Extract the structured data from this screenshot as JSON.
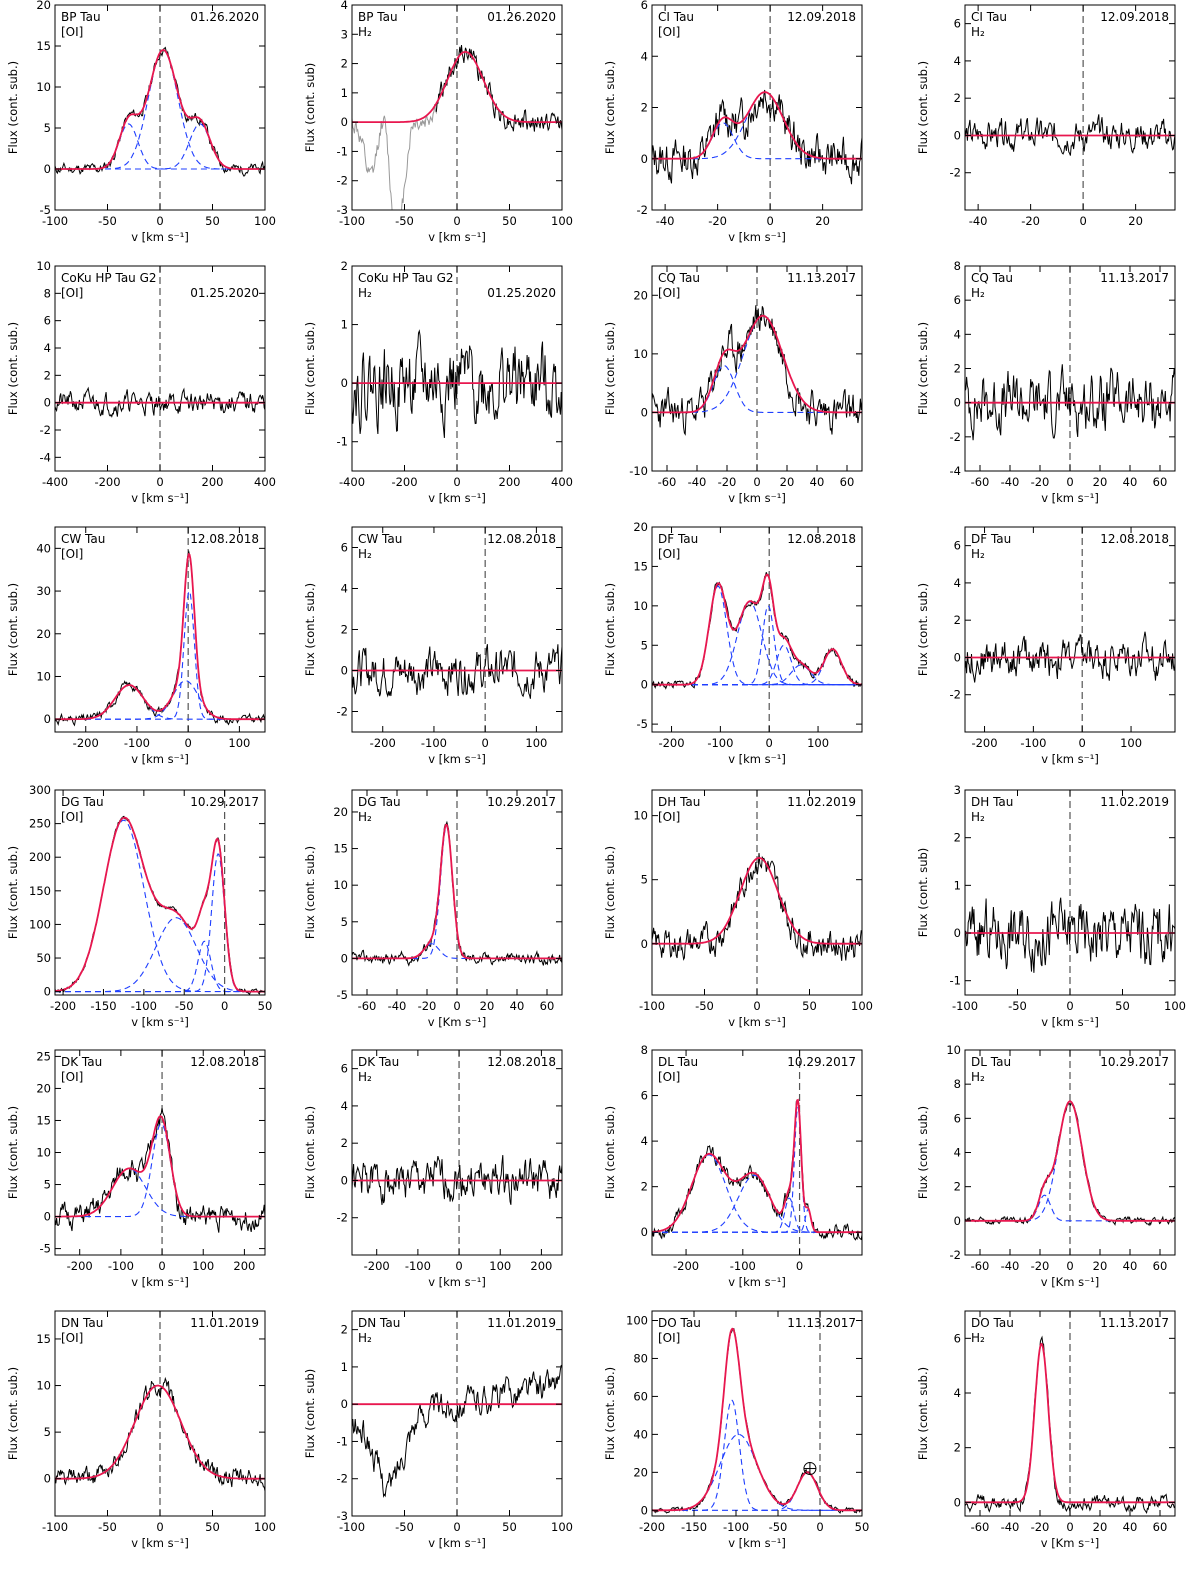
{
  "chart_data": [
    {
      "id": "bp-oi",
      "type": "line",
      "title": "BP Tau",
      "line_label": "[OI]",
      "date": "01.26.2020",
      "xlabel": "v [km s⁻¹]",
      "ylabel": "Flux (cont. sub.)",
      "xlim": [
        -100,
        100
      ],
      "ylim": [
        -5,
        20
      ],
      "xticks": [
        "-100",
        "-50",
        "0",
        "50",
        "100"
      ],
      "yticks": [
        "-5",
        "0",
        "5",
        "10",
        "15",
        "20"
      ],
      "components": [
        {
          "amp": 5.5,
          "center": -30,
          "sigma": 9
        },
        {
          "amp": 14.5,
          "center": 3,
          "sigma": 14
        },
        {
          "amp": 5.5,
          "center": 38,
          "sigma": 10
        }
      ],
      "noise": 0.5,
      "seed": 11,
      "zero_line_style": "gray"
    },
    {
      "id": "bp-h2",
      "type": "line",
      "title": "BP Tau",
      "line_label": "H₂",
      "date": "01.26.2020",
      "xlabel": "v [km s⁻¹]",
      "ylabel": "Flux (cont. sub)",
      "xlim": [
        -100,
        100
      ],
      "ylim": [
        -3,
        4
      ],
      "xticks": [
        "-100",
        "-50",
        "0",
        "50",
        "100"
      ],
      "yticks": [
        "-3",
        "-2",
        "-1",
        "0",
        "1",
        "2",
        "3",
        "4"
      ],
      "components": [
        {
          "amp": 2.4,
          "center": 8,
          "sigma": 17
        }
      ],
      "noise": 0.3,
      "seed": 12,
      "zero_line_style": "black",
      "show_components": false,
      "gray_absorption": true
    },
    {
      "id": "ci-oi",
      "type": "line",
      "title": "CI Tau",
      "line_label": "[OI]",
      "date": "12.09.2018",
      "xlabel": "v [km s⁻¹]",
      "ylabel": "Flux (cont. sub.)",
      "xlim": [
        -45,
        35
      ],
      "ylim": [
        -2,
        6
      ],
      "xticks": [
        "-40",
        "-20",
        "0",
        "20"
      ],
      "yticks": [
        "-2",
        "0",
        "2",
        "4",
        "6"
      ],
      "components": [
        {
          "amp": 1.4,
          "center": -18,
          "sigma": 4
        },
        {
          "amp": 2.6,
          "center": -2,
          "sigma": 7
        }
      ],
      "noise": 0.6,
      "seed": 13,
      "zero_line_style": "black"
    },
    {
      "id": "ci-h2",
      "type": "line",
      "title": "CI Tau",
      "line_label": "H₂",
      "date": "12.09.2018",
      "xlabel": "",
      "ylabel": "Flux (cont. sub.)",
      "xlim": [
        -45,
        35
      ],
      "ylim": [
        -4,
        7
      ],
      "xticks": [
        "-40",
        "-20",
        "0",
        "20"
      ],
      "yticks": [
        "-2",
        "0",
        "2",
        "4",
        "6"
      ],
      "components": [],
      "noise": 0.6,
      "seed": 14,
      "zero_line_style": "gray"
    },
    {
      "id": "coku-oi",
      "type": "line",
      "title": "CoKu HP Tau G2",
      "line_label": "[OI]",
      "date": "01.25.2020",
      "xlabel": "v [km s⁻¹]",
      "ylabel": "Flux (cont. sub.)",
      "xlim": [
        -400,
        400
      ],
      "ylim": [
        -5,
        10
      ],
      "xticks": [
        "-400",
        "-200",
        "0",
        "200",
        "400"
      ],
      "yticks": [
        "-4",
        "-2",
        "0",
        "2",
        "4",
        "6",
        "8",
        "10"
      ],
      "components": [],
      "noise": 0.6,
      "seed": 21,
      "zero_line_style": "gray"
    },
    {
      "id": "coku-h2",
      "type": "line",
      "title": "CoKu HP Tau G2",
      "line_label": "H₂",
      "date": "01.25.2020",
      "xlabel": "v [km s⁻¹]",
      "ylabel": "Flux (cont. sub.)",
      "xlim": [
        -400,
        400
      ],
      "ylim": [
        -1.5,
        2
      ],
      "xticks": [
        "-400",
        "-200",
        "0",
        "200",
        "400"
      ],
      "yticks": [
        "-1",
        "0",
        "1",
        "2"
      ],
      "components": [],
      "noise": 0.5,
      "seed": 22,
      "zero_line_style": "black"
    },
    {
      "id": "cq-oi",
      "type": "line",
      "title": "CQ Tau",
      "line_label": "[OI]",
      "date": "11.13.2017",
      "xlabel": "v [km s⁻¹]",
      "ylabel": "Flux (cont. sub.)",
      "xlim": [
        -70,
        70
      ],
      "ylim": [
        -10,
        25
      ],
      "xticks": [
        "-60",
        "-40",
        "-20",
        "0",
        "20",
        "40",
        "60"
      ],
      "yticks": [
        "-10",
        "0",
        "10",
        "20"
      ],
      "components": [
        {
          "amp": 8,
          "center": -22,
          "sigma": 7
        },
        {
          "amp": 16.5,
          "center": 4,
          "sigma": 13
        }
      ],
      "noise": 2.5,
      "seed": 23,
      "zero_line_style": "black"
    },
    {
      "id": "cq-h2",
      "type": "line",
      "title": "CQ Tau",
      "line_label": "H₂",
      "date": "11.13.2017",
      "xlabel": "v [km s⁻¹]",
      "ylabel": "Flux (cont. sub.)",
      "xlim": [
        -70,
        70
      ],
      "ylim": [
        -4,
        8
      ],
      "xticks": [
        "-60",
        "-40",
        "-20",
        "0",
        "20",
        "40",
        "60"
      ],
      "yticks": [
        "-4",
        "-2",
        "0",
        "2",
        "4",
        "6",
        "8"
      ],
      "components": [],
      "noise": 1.3,
      "seed": 24,
      "zero_line_style": "black"
    },
    {
      "id": "cw-oi",
      "type": "line",
      "title": "CW Tau",
      "line_label": "[OI]",
      "date": "12.08.2018",
      "xlabel": "v [km s⁻¹]",
      "ylabel": "Flux (cont. sub.)",
      "xlim": [
        -260,
        150
      ],
      "ylim": [
        -3,
        45
      ],
      "xticks": [
        "-200",
        "-100",
        "0",
        "100"
      ],
      "yticks": [
        "0",
        "10",
        "20",
        "30",
        "40"
      ],
      "components": [
        {
          "amp": 8,
          "center": -115,
          "sigma": 28
        },
        {
          "amp": 9,
          "center": -5,
          "sigma": 25
        },
        {
          "amp": 30,
          "center": 2,
          "sigma": 10
        }
      ],
      "noise": 0.8,
      "seed": 31,
      "zero_line_style": "black"
    },
    {
      "id": "cw-h2",
      "type": "line",
      "title": "CW Tau",
      "line_label": "H₂",
      "date": "12.08.2018",
      "xlabel": "v [km s⁻¹]",
      "ylabel": "Flux (cont. sub.)",
      "xlim": [
        -260,
        150
      ],
      "ylim": [
        -3,
        7
      ],
      "xticks": [
        "-200",
        "-100",
        "0",
        "100"
      ],
      "yticks": [
        "-2",
        "0",
        "2",
        "4",
        "6"
      ],
      "components": [],
      "noise": 0.8,
      "seed": 32,
      "zero_line_style": "black"
    },
    {
      "id": "df-oi",
      "type": "line",
      "title": "DF Tau",
      "line_label": "[OI]",
      "date": "12.08.2018",
      "xlabel": "v [km s⁻¹]",
      "ylabel": "Flux (cont. sub.)",
      "xlim": [
        -240,
        190
      ],
      "ylim": [
        -6,
        20
      ],
      "xticks": [
        "-200",
        "-100",
        "0",
        "100"
      ],
      "yticks": [
        "-5",
        "0",
        "5",
        "10",
        "15",
        "20"
      ],
      "components": [
        {
          "amp": 12.5,
          "center": -105,
          "sigma": 18
        },
        {
          "amp": 10.5,
          "center": -40,
          "sigma": 25
        },
        {
          "amp": 10,
          "center": -2,
          "sigma": 12
        },
        {
          "amp": 5,
          "center": 30,
          "sigma": 15
        },
        {
          "amp": 2.5,
          "center": 65,
          "sigma": 20
        },
        {
          "amp": 4.5,
          "center": 130,
          "sigma": 18
        }
      ],
      "noise": 0.4,
      "seed": 33,
      "zero_line_style": "black"
    },
    {
      "id": "df-h2",
      "type": "line",
      "title": "DF Tau",
      "line_label": "H₂",
      "date": "12.08.2018",
      "xlabel": "v [km s⁻¹]",
      "ylabel": "Flux (cont. sub.)",
      "xlim": [
        -240,
        190
      ],
      "ylim": [
        -4,
        7
      ],
      "xticks": [
        "-200",
        "-100",
        "0",
        "100"
      ],
      "yticks": [
        "-2",
        "0",
        "2",
        "4",
        "6"
      ],
      "components": [],
      "noise": 0.8,
      "seed": 34,
      "zero_line_style": "black"
    },
    {
      "id": "dg-oi",
      "type": "line",
      "title": "DG Tau",
      "line_label": "[OI]",
      "date": "10.29.2017",
      "xlabel": "v [km s⁻¹]",
      "ylabel": "Flux (cont. sub.)",
      "xlim": [
        -210,
        50
      ],
      "ylim": [
        -5,
        300
      ],
      "xticks": [
        "-200",
        "-150",
        "-100",
        "-50",
        "0",
        "50"
      ],
      "yticks": [
        "0",
        "50",
        "100",
        "150",
        "200",
        "250",
        "300"
      ],
      "components": [
        {
          "amp": 255,
          "center": -125,
          "sigma": 25
        },
        {
          "amp": 110,
          "center": -60,
          "sigma": 25
        },
        {
          "amp": 75,
          "center": -25,
          "sigma": 8
        },
        {
          "amp": 205,
          "center": -8,
          "sigma": 8
        }
      ],
      "noise": 3,
      "seed": 41,
      "zero_line_style": "black"
    },
    {
      "id": "dg-h2",
      "type": "line",
      "title": "DG Tau",
      "line_label": "H₂",
      "date": "10.29.2017",
      "xlabel": "v [Km s⁻¹]",
      "ylabel": "Flux (cont. sub.)",
      "xlim": [
        -70,
        70
      ],
      "ylim": [
        -5,
        23
      ],
      "xticks": [
        "-60",
        "-40",
        "-20",
        "0",
        "20",
        "40",
        "60"
      ],
      "yticks": [
        "-5",
        "0",
        "5",
        "10",
        "15",
        "20"
      ],
      "components": [
        {
          "amp": 2,
          "center": -17,
          "sigma": 5
        },
        {
          "amp": 18,
          "center": -7,
          "sigma": 4
        }
      ],
      "noise": 0.6,
      "seed": 42,
      "zero_line_style": "black"
    },
    {
      "id": "dh-oi",
      "type": "line",
      "title": "DH Tau",
      "line_label": "[OI]",
      "date": "11.02.2019",
      "xlabel": "v [km s⁻¹]",
      "ylabel": "Flux (cont. sub.)",
      "xlim": [
        -100,
        100
      ],
      "ylim": [
        -4,
        12
      ],
      "xticks": [
        "-100",
        "-50",
        "0",
        "50",
        "100"
      ],
      "yticks": [
        "0",
        "5",
        "10"
      ],
      "components": [
        {
          "amp": 6.7,
          "center": 2,
          "sigma": 18
        }
      ],
      "noise": 0.9,
      "seed": 43,
      "zero_line_style": "black",
      "show_components": false
    },
    {
      "id": "dh-h2",
      "type": "line",
      "title": "DH Tau",
      "line_label": "H₂",
      "date": "11.02.2019",
      "xlabel": "v [km s⁻¹]",
      "ylabel": "Flux (cont. sub)",
      "xlim": [
        -100,
        100
      ],
      "ylim": [
        -1.3,
        3
      ],
      "xticks": [
        "-100",
        "-50",
        "0",
        "50",
        "100"
      ],
      "yticks": [
        "-1",
        "0",
        "1",
        "2",
        "3"
      ],
      "components": [],
      "noise": 0.5,
      "seed": 44,
      "zero_line_style": "black"
    },
    {
      "id": "dk-oi",
      "type": "line",
      "title": "DK Tau",
      "line_label": "[OI]",
      "date": "12.08.2018",
      "xlabel": "v [km s⁻¹]",
      "ylabel": "Flux (cont. sub.)",
      "xlim": [
        -260,
        250
      ],
      "ylim": [
        -6,
        26
      ],
      "xticks": [
        "-200",
        "-100",
        "0",
        "100",
        "200"
      ],
      "yticks": [
        "-5",
        "0",
        "5",
        "10",
        "15",
        "20",
        "25"
      ],
      "components": [
        {
          "amp": 7.5,
          "center": -80,
          "sigma": 40
        },
        {
          "amp": 14.5,
          "center": -2,
          "sigma": 22
        }
      ],
      "noise": 1.4,
      "seed": 51,
      "zero_line_style": "gray"
    },
    {
      "id": "dk-h2",
      "type": "line",
      "title": "DK Tau",
      "line_label": "H₂",
      "date": "12.08.2018",
      "xlabel": "v [km s⁻¹]",
      "ylabel": "Flux (cont. sub.)",
      "xlim": [
        -260,
        250
      ],
      "ylim": [
        -4,
        7
      ],
      "xticks": [
        "-200",
        "-100",
        "0",
        "100",
        "200"
      ],
      "yticks": [
        "-2",
        "0",
        "2",
        "4",
        "6"
      ],
      "components": [],
      "noise": 0.8,
      "seed": 52,
      "zero_line_style": "black"
    },
    {
      "id": "dl-oi",
      "type": "line",
      "title": "DL Tau",
      "line_label": "[OI]",
      "date": "10.29.2017",
      "xlabel": "v [km s⁻¹]",
      "ylabel": "Flux (cont. sub.)",
      "xlim": [
        -260,
        110
      ],
      "ylim": [
        -1,
        8
      ],
      "xticks": [
        "-200",
        "-100",
        "0"
      ],
      "yticks": [
        "0",
        "2",
        "4",
        "6",
        "8"
      ],
      "components": [
        {
          "amp": 3.4,
          "center": -160,
          "sigma": 30
        },
        {
          "amp": 2.5,
          "center": -80,
          "sigma": 28
        },
        {
          "amp": 1.5,
          "center": -18,
          "sigma": 8
        },
        {
          "amp": 5.5,
          "center": -3,
          "sigma": 6
        },
        {
          "amp": 1,
          "center": 15,
          "sigma": 5
        }
      ],
      "noise": 0.25,
      "seed": 53,
      "zero_line_style": "black"
    },
    {
      "id": "dl-h2",
      "type": "line",
      "title": "DL Tau",
      "line_label": "H₂",
      "date": "10.29.2017",
      "xlabel": "v [Km s⁻¹]",
      "ylabel": "Flux (cont. sub.)",
      "xlim": [
        -70,
        70
      ],
      "ylim": [
        -2,
        10
      ],
      "xticks": [
        "-60",
        "-40",
        "-20",
        "0",
        "20",
        "40",
        "60"
      ],
      "yticks": [
        "-2",
        "0",
        "2",
        "4",
        "6",
        "8",
        "10"
      ],
      "components": [
        {
          "amp": 1.5,
          "center": -17,
          "sigma": 4
        },
        {
          "amp": 7,
          "center": 0,
          "sigma": 8
        }
      ],
      "noise": 0.15,
      "seed": 54,
      "zero_line_style": "black"
    },
    {
      "id": "dn-oi",
      "type": "line",
      "title": "DN Tau",
      "line_label": "[OI]",
      "date": "11.01.2019",
      "xlabel": "v [km s⁻¹]",
      "ylabel": "Flux (cont. sub.)",
      "xlim": [
        -100,
        100
      ],
      "ylim": [
        -4,
        18
      ],
      "xticks": [
        "-100",
        "-50",
        "0",
        "50",
        "100"
      ],
      "yticks": [
        "0",
        "5",
        "10",
        "15"
      ],
      "components": [
        {
          "amp": 10,
          "center": -2,
          "sigma": 22
        }
      ],
      "noise": 0.8,
      "seed": 61,
      "zero_line_style": "gray",
      "show_components": false
    },
    {
      "id": "dn-h2",
      "type": "line",
      "title": "DN Tau",
      "line_label": "H₂",
      "date": "11.01.2019",
      "xlabel": "v [km s⁻¹]",
      "ylabel": "Flux (cont. sub)",
      "xlim": [
        -100,
        100
      ],
      "ylim": [
        -3,
        2.5
      ],
      "xticks": [
        "-100",
        "-50",
        "0",
        "50",
        "100"
      ],
      "yticks": [
        "-3",
        "-2",
        "-1",
        "0",
        "1",
        "2"
      ],
      "components": [],
      "noise": 0.3,
      "seed": 62,
      "zero_line_style": "black",
      "trend": "dn"
    },
    {
      "id": "do-oi",
      "type": "line",
      "title": "DO Tau",
      "line_label": "[OI]",
      "date": "11.13.2017",
      "xlabel": "v [km s⁻¹]",
      "ylabel": "Flux (cont. sub.)",
      "xlim": [
        -200,
        50
      ],
      "ylim": [
        -3,
        105
      ],
      "xticks": [
        "-200",
        "-150",
        "-100",
        "-50",
        "0",
        "50"
      ],
      "yticks": [
        "0",
        "20",
        "40",
        "60",
        "80",
        "100"
      ],
      "components": [
        {
          "amp": 58,
          "center": -105,
          "sigma": 9
        },
        {
          "amp": 40,
          "center": -97,
          "sigma": 22
        },
        {
          "amp": 20,
          "center": -15,
          "sigma": 12
        }
      ],
      "noise": 1,
      "seed": 63,
      "zero_line_style": "black",
      "earth_symbol": {
        "x": -12,
        "y": 22
      }
    },
    {
      "id": "do-h2",
      "type": "line",
      "title": "DO Tau",
      "line_label": "H₂",
      "date": "11.13.2017",
      "xlabel": "v [Km s⁻¹]",
      "ylabel": "Flux (cont. sub.)",
      "xlim": [
        -70,
        70
      ],
      "ylim": [
        -0.5,
        7
      ],
      "xticks": [
        "-60",
        "-40",
        "-20",
        "0",
        "20",
        "40",
        "60"
      ],
      "yticks": [
        "0",
        "2",
        "4",
        "6"
      ],
      "components": [
        {
          "amp": 5.8,
          "center": -19,
          "sigma": 4.5
        }
      ],
      "noise": 0.2,
      "seed": 64,
      "zero_line_style": "black"
    }
  ]
}
